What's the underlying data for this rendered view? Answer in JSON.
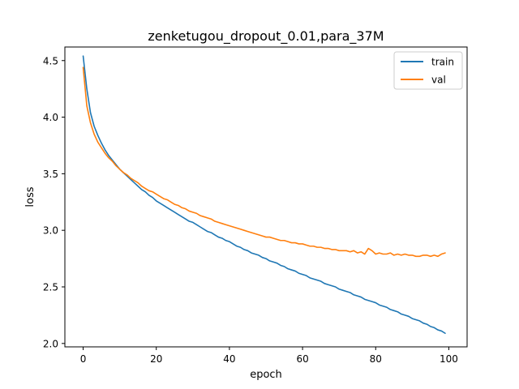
{
  "chart_data": {
    "type": "line",
    "title": "zenketugou_dropout_0.01,para_37M",
    "xlabel": "epoch",
    "ylabel": "loss",
    "xlim": [
      -5,
      105
    ],
    "ylim": [
      1.97,
      4.62
    ],
    "xticks": [
      0,
      20,
      40,
      60,
      80,
      100
    ],
    "yticks": [
      2.0,
      2.5,
      3.0,
      3.5,
      4.0,
      4.5
    ],
    "xtick_labels": [
      "0",
      "20",
      "40",
      "60",
      "80",
      "100"
    ],
    "ytick_labels": [
      "2.0",
      "2.5",
      "3.0",
      "3.5",
      "4.0",
      "4.5"
    ],
    "grid": false,
    "legend_position": "top-right",
    "series": [
      {
        "name": "train",
        "color": "#1f77b4",
        "x": [
          0,
          1,
          2,
          3,
          4,
          5,
          6,
          7,
          8,
          9,
          10,
          11,
          12,
          13,
          14,
          15,
          16,
          17,
          18,
          19,
          20,
          21,
          22,
          23,
          24,
          25,
          26,
          27,
          28,
          29,
          30,
          31,
          32,
          33,
          34,
          35,
          36,
          37,
          38,
          39,
          40,
          41,
          42,
          43,
          44,
          45,
          46,
          47,
          48,
          49,
          50,
          51,
          52,
          53,
          54,
          55,
          56,
          57,
          58,
          59,
          60,
          61,
          62,
          63,
          64,
          65,
          66,
          67,
          68,
          69,
          70,
          71,
          72,
          73,
          74,
          75,
          76,
          77,
          78,
          79,
          80,
          81,
          82,
          83,
          84,
          85,
          86,
          87,
          88,
          89,
          90,
          91,
          92,
          93,
          94,
          95,
          96,
          97,
          98,
          99
        ],
        "y": [
          4.54,
          4.25,
          4.04,
          3.92,
          3.84,
          3.77,
          3.71,
          3.66,
          3.62,
          3.58,
          3.54,
          3.51,
          3.48,
          3.45,
          3.42,
          3.39,
          3.36,
          3.34,
          3.31,
          3.29,
          3.26,
          3.24,
          3.22,
          3.2,
          3.18,
          3.16,
          3.14,
          3.12,
          3.1,
          3.08,
          3.07,
          3.05,
          3.03,
          3.01,
          2.99,
          2.98,
          2.96,
          2.94,
          2.93,
          2.91,
          2.9,
          2.88,
          2.86,
          2.85,
          2.83,
          2.82,
          2.8,
          2.79,
          2.78,
          2.76,
          2.75,
          2.73,
          2.72,
          2.71,
          2.69,
          2.68,
          2.66,
          2.65,
          2.64,
          2.62,
          2.61,
          2.6,
          2.58,
          2.57,
          2.56,
          2.55,
          2.53,
          2.52,
          2.51,
          2.5,
          2.48,
          2.47,
          2.46,
          2.45,
          2.43,
          2.42,
          2.41,
          2.39,
          2.38,
          2.37,
          2.36,
          2.34,
          2.33,
          2.32,
          2.3,
          2.29,
          2.28,
          2.26,
          2.25,
          2.24,
          2.22,
          2.21,
          2.2,
          2.18,
          2.17,
          2.15,
          2.14,
          2.12,
          2.11,
          2.09
        ]
      },
      {
        "name": "val",
        "color": "#ff7f0e",
        "x": [
          0,
          1,
          2,
          3,
          4,
          5,
          6,
          7,
          8,
          9,
          10,
          11,
          12,
          13,
          14,
          15,
          16,
          17,
          18,
          19,
          20,
          21,
          22,
          23,
          24,
          25,
          26,
          27,
          28,
          29,
          30,
          31,
          32,
          33,
          34,
          35,
          36,
          37,
          38,
          39,
          40,
          41,
          42,
          43,
          44,
          45,
          46,
          47,
          48,
          49,
          50,
          51,
          52,
          53,
          54,
          55,
          56,
          57,
          58,
          59,
          60,
          61,
          62,
          63,
          64,
          65,
          66,
          67,
          68,
          69,
          70,
          71,
          72,
          73,
          74,
          75,
          76,
          77,
          78,
          79,
          80,
          81,
          82,
          83,
          84,
          85,
          86,
          87,
          88,
          89,
          90,
          91,
          92,
          93,
          94,
          95,
          96,
          97,
          98,
          99
        ],
        "y": [
          4.44,
          4.1,
          3.95,
          3.85,
          3.78,
          3.73,
          3.68,
          3.64,
          3.61,
          3.57,
          3.54,
          3.51,
          3.49,
          3.46,
          3.44,
          3.42,
          3.39,
          3.37,
          3.35,
          3.34,
          3.32,
          3.3,
          3.28,
          3.27,
          3.25,
          3.23,
          3.22,
          3.2,
          3.19,
          3.17,
          3.16,
          3.15,
          3.13,
          3.12,
          3.11,
          3.1,
          3.08,
          3.07,
          3.06,
          3.05,
          3.04,
          3.03,
          3.02,
          3.01,
          3.0,
          2.99,
          2.98,
          2.97,
          2.96,
          2.95,
          2.94,
          2.94,
          2.93,
          2.92,
          2.91,
          2.91,
          2.9,
          2.89,
          2.89,
          2.88,
          2.88,
          2.87,
          2.86,
          2.86,
          2.85,
          2.85,
          2.84,
          2.84,
          2.83,
          2.83,
          2.82,
          2.82,
          2.82,
          2.81,
          2.82,
          2.8,
          2.81,
          2.79,
          2.84,
          2.82,
          2.79,
          2.8,
          2.79,
          2.79,
          2.8,
          2.78,
          2.79,
          2.78,
          2.79,
          2.78,
          2.78,
          2.77,
          2.77,
          2.78,
          2.78,
          2.77,
          2.78,
          2.77,
          2.79,
          2.8
        ]
      }
    ]
  }
}
